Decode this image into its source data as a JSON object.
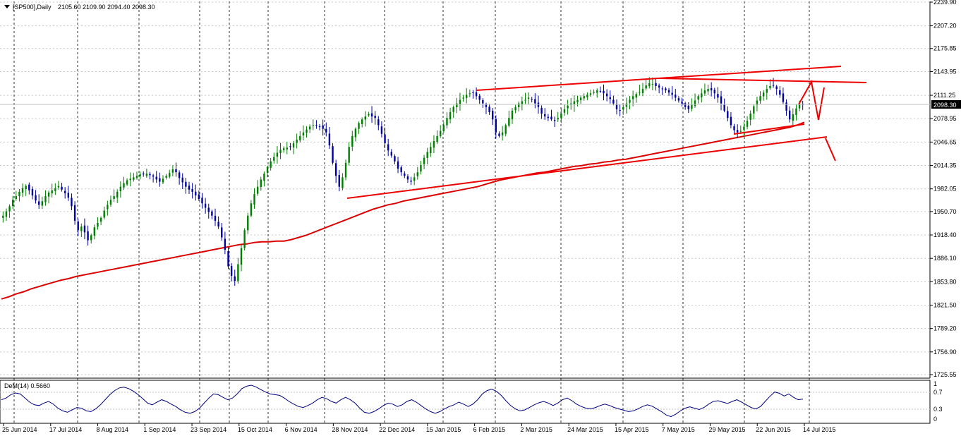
{
  "header": {
    "symbol": "[SP500],Daily",
    "open": "2105.60",
    "high": "2109.90",
    "low": "2094.40",
    "close": "2098.30"
  },
  "indicator": {
    "label": "DeM(14) 0.5660",
    "levels": [
      "1",
      "0.7",
      "0.3",
      "0"
    ]
  },
  "colors": {
    "background": "#ffffff",
    "bull_candle": "#008000",
    "bear_candle": "#0000a0",
    "moving_average": "#dd0000",
    "trendline": "#ee0000",
    "indicator_line": "#000080",
    "price_marker_bg": "#000000"
  },
  "chart_data": {
    "type": "candlestick",
    "timeframe": "Daily",
    "y_ticks": [
      "2239.90",
      "2207.20",
      "2175.85",
      "2143.95",
      "2111.25",
      "2078.95",
      "2046.65",
      "2014.35",
      "1982.05",
      "1950.70",
      "1918.40",
      "1886.10",
      "1853.80",
      "1821.50",
      "1789.20",
      "1756.90",
      "1725.55"
    ],
    "ylim": [
      1725.55,
      2239.9
    ],
    "last_price": "2098.30",
    "x_ticks": [
      "25 Jun 2014",
      "17 Jul 2014",
      "8 Aug 2014",
      "1 Sep 2014",
      "23 Sep 2014",
      "15 Oct 2014",
      "6 Nov 2014",
      "28 Nov 2014",
      "22 Dec 2014",
      "15 Jan 2015",
      "6 Feb 2015",
      "2 Mar 2015",
      "24 Mar 2015",
      "15 Apr 2015",
      "7 May 2015",
      "29 May 2015",
      "22 Jun 2015",
      "14 Jul 2015"
    ],
    "vertical_separators_at_tick_index": [
      0,
      3,
      7,
      10,
      13,
      15,
      17,
      19,
      21,
      23,
      26,
      28,
      31,
      33
    ],
    "close_series": [
      1945,
      1951,
      1958,
      1967,
      1972,
      1978,
      1983,
      1986,
      1980,
      1973,
      1966,
      1960,
      1965,
      1972,
      1977,
      1980,
      1983,
      1986,
      1981,
      1976,
      1970,
      1958,
      1938,
      1925,
      1930,
      1922,
      1911,
      1918,
      1929,
      1935,
      1942,
      1952,
      1960,
      1967,
      1972,
      1978,
      1985,
      1990,
      1994,
      1996,
      1998,
      2000,
      2002,
      2002,
      2003,
      2001,
      1999,
      1995,
      1992,
      1996,
      2000,
      2004,
      2009,
      2005,
      1997,
      1991,
      1985,
      1981,
      1978,
      1973,
      1968,
      1962,
      1956,
      1950,
      1945,
      1938,
      1930,
      1915,
      1898,
      1875,
      1862,
      1855,
      1878,
      1900,
      1925,
      1945,
      1962,
      1975,
      1985,
      1995,
      2003,
      2012,
      2020,
      2026,
      2032,
      2036,
      2038,
      2039,
      2040,
      2045,
      2050,
      2055,
      2060,
      2064,
      2068,
      2070,
      2070,
      2068,
      2065,
      2060,
      2042,
      2018,
      2000,
      1985,
      1998,
      2018,
      2040,
      2055,
      2065,
      2073,
      2078,
      2082,
      2085,
      2082,
      2080,
      2070,
      2058,
      2045,
      2035,
      2028,
      2020,
      2010,
      2005,
      2000,
      1995,
      1992,
      1998,
      2005,
      2015,
      2025,
      2033,
      2040,
      2048,
      2055,
      2062,
      2070,
      2080,
      2088,
      2095,
      2100,
      2105,
      2108,
      2112,
      2114,
      2115,
      2110,
      2105,
      2100,
      2095,
      2088,
      2078,
      2060,
      2055,
      2060,
      2070,
      2080,
      2090,
      2095,
      2100,
      2103,
      2105,
      2108,
      2106,
      2100,
      2095,
      2086,
      2082,
      2080,
      2078,
      2076,
      2080,
      2086,
      2092,
      2097,
      2100,
      2103,
      2105,
      2108,
      2110,
      2112,
      2114,
      2116,
      2118,
      2117,
      2114,
      2110,
      2106,
      2100,
      2092,
      2090,
      2095,
      2100,
      2105,
      2110,
      2113,
      2116,
      2120,
      2125,
      2128,
      2127,
      2124,
      2122,
      2120,
      2118,
      2115,
      2112,
      2108,
      2104,
      2100,
      2095,
      2092,
      2098,
      2104,
      2110,
      2114,
      2118,
      2120,
      2118,
      2114,
      2108,
      2100,
      2090,
      2080,
      2070,
      2063,
      2060,
      2062,
      2068,
      2076,
      2086,
      2096,
      2104,
      2110,
      2115,
      2120,
      2124,
      2125,
      2120,
      2112,
      2102,
      2090,
      2078,
      2085,
      2093,
      2100,
      2098
    ],
    "ma200_series": [
      1830,
      1833,
      1837,
      1840,
      1844,
      1847,
      1850,
      1853,
      1856,
      1858,
      1861,
      1863,
      1865,
      1867,
      1869,
      1871,
      1873,
      1875,
      1877,
      1879,
      1881,
      1883,
      1885,
      1887,
      1889,
      1891,
      1893,
      1895,
      1897,
      1899,
      1901,
      1903,
      1905,
      1906,
      1908,
      1909,
      1909,
      1910,
      1910,
      1912,
      1915,
      1918,
      1922,
      1926,
      1930,
      1934,
      1938,
      1942,
      1946,
      1950,
      1954,
      1957,
      1960,
      1962,
      1965,
      1967,
      1969,
      1971,
      1973,
      1975,
      1977,
      1979,
      1981,
      1983,
      1985,
      1988,
      1991,
      1994,
      1996,
      1998,
      2000,
      2002,
      2004,
      2005,
      2007,
      2009,
      2011,
      2013,
      2014,
      2016,
      2017,
      2019,
      2020,
      2022,
      2023,
      2025,
      2027,
      2029,
      2031,
      2033,
      2035,
      2037,
      2039,
      2041,
      2043,
      2045,
      2047,
      2049,
      2051,
      2053,
      2055,
      2057,
      2059,
      2061,
      2063,
      2065,
      2067,
      2070,
      2074
    ],
    "indicator_series": [
      0.55,
      0.6,
      0.7,
      0.75,
      0.72,
      0.6,
      0.48,
      0.4,
      0.38,
      0.45,
      0.5,
      0.42,
      0.3,
      0.22,
      0.18,
      0.25,
      0.32,
      0.3,
      0.22,
      0.2,
      0.28,
      0.4,
      0.55,
      0.7,
      0.82,
      0.9,
      0.92,
      0.88,
      0.8,
      0.7,
      0.58,
      0.45,
      0.4,
      0.48,
      0.55,
      0.5,
      0.42,
      0.35,
      0.25,
      0.18,
      0.15,
      0.2,
      0.3,
      0.45,
      0.6,
      0.72,
      0.7,
      0.62,
      0.55,
      0.6,
      0.72,
      0.88,
      0.95,
      0.98,
      0.93,
      0.85,
      0.78,
      0.72,
      0.7,
      0.68,
      0.6,
      0.5,
      0.42,
      0.35,
      0.32,
      0.38,
      0.45,
      0.55,
      0.62,
      0.58,
      0.5,
      0.45,
      0.55,
      0.62,
      0.55,
      0.45,
      0.3,
      0.18,
      0.15,
      0.2,
      0.28,
      0.38,
      0.45,
      0.42,
      0.35,
      0.4,
      0.5,
      0.55,
      0.48,
      0.38,
      0.28,
      0.2,
      0.15,
      0.2,
      0.28,
      0.35,
      0.4,
      0.48,
      0.42,
      0.35,
      0.42,
      0.55,
      0.72,
      0.82,
      0.86,
      0.8,
      0.68,
      0.52,
      0.38,
      0.28,
      0.22,
      0.25,
      0.32,
      0.4,
      0.46,
      0.5,
      0.45,
      0.38,
      0.45,
      0.55,
      0.6,
      0.52,
      0.42,
      0.35,
      0.3,
      0.28,
      0.32,
      0.38,
      0.42,
      0.38,
      0.32,
      0.28,
      0.24,
      0.2,
      0.22,
      0.28,
      0.35,
      0.4,
      0.36,
      0.28,
      0.2,
      0.1,
      0.05,
      0.12,
      0.22,
      0.3,
      0.34,
      0.3,
      0.26,
      0.32,
      0.42,
      0.5,
      0.52,
      0.48,
      0.44,
      0.5,
      0.55,
      0.48,
      0.4,
      0.32,
      0.28,
      0.35,
      0.5,
      0.65,
      0.78,
      0.74,
      0.66,
      0.72,
      0.62,
      0.55,
      0.57
    ]
  }
}
